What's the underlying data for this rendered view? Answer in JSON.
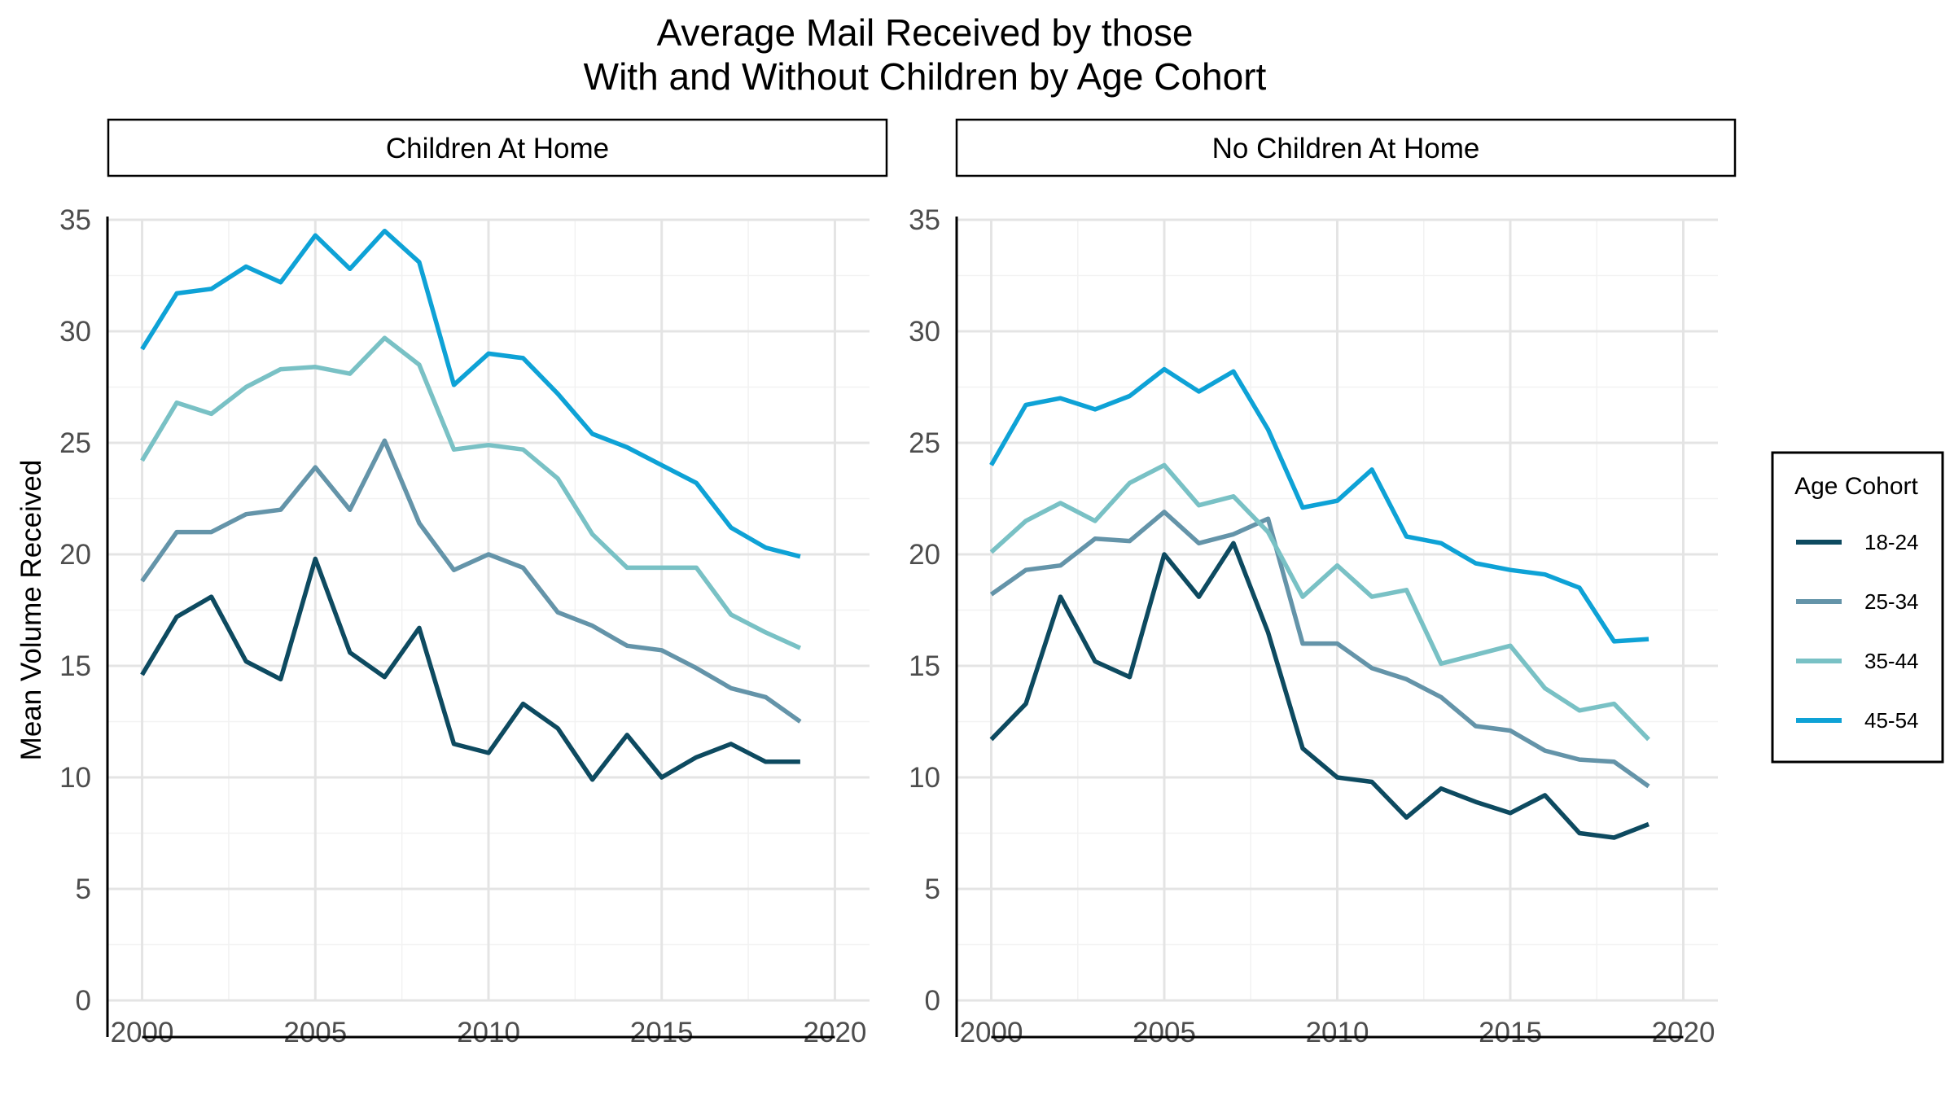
{
  "chart_data": {
    "type": "line",
    "title_lines": [
      "Average Mail Received by those",
      "With and Without Children by Age Cohort"
    ],
    "xlabel": "",
    "ylabel": "Mean Volume Received",
    "xlim": [
      2000,
      2020
    ],
    "ylim": [
      0,
      35
    ],
    "x_ticks": [
      "2000",
      "2005",
      "2010",
      "2015",
      "2020"
    ],
    "y_ticks": [
      "0",
      "5",
      "10",
      "15",
      "20",
      "25",
      "30",
      "35"
    ],
    "grid": true,
    "legend": {
      "title": "Age Cohort",
      "position": "right"
    },
    "colors": {
      "18-24": "#0d4a60",
      "25-34": "#6494a9",
      "35-44": "#79c1c5",
      "45-54": "#0ea2d6"
    },
    "x": [
      2000,
      2001,
      2002,
      2003,
      2004,
      2005,
      2006,
      2007,
      2008,
      2009,
      2010,
      2011,
      2012,
      2013,
      2014,
      2015,
      2016,
      2017,
      2018,
      2019
    ],
    "panels": [
      {
        "strip": "Children At Home",
        "series": [
          {
            "name": "18-24",
            "values": [
              14.6,
              17.2,
              18.1,
              15.2,
              14.4,
              19.8,
              15.6,
              14.5,
              16.7,
              11.5,
              11.1,
              13.3,
              12.2,
              9.9,
              11.9,
              10.0,
              10.9,
              11.5,
              10.7,
              10.7
            ]
          },
          {
            "name": "25-34",
            "values": [
              18.8,
              21.0,
              21.0,
              21.8,
              22.0,
              23.9,
              22.0,
              25.1,
              21.4,
              19.3,
              20.0,
              19.4,
              17.4,
              16.8,
              15.9,
              15.7,
              14.9,
              14.0,
              13.6,
              12.5
            ]
          },
          {
            "name": "35-44",
            "values": [
              24.2,
              26.8,
              26.3,
              27.5,
              28.3,
              28.4,
              28.1,
              29.7,
              28.5,
              24.7,
              24.9,
              24.7,
              23.4,
              20.9,
              19.4,
              19.4,
              19.4,
              17.3,
              16.5,
              15.8
            ]
          },
          {
            "name": "45-54",
            "values": [
              29.2,
              31.7,
              31.9,
              32.9,
              32.2,
              34.3,
              32.8,
              34.5,
              33.1,
              27.6,
              29.0,
              28.8,
              27.2,
              25.4,
              24.8,
              24.0,
              23.2,
              21.2,
              20.3,
              19.9
            ]
          }
        ]
      },
      {
        "strip": "No Children At Home",
        "series": [
          {
            "name": "18-24",
            "values": [
              11.7,
              13.3,
              18.1,
              15.2,
              14.5,
              20.0,
              18.1,
              20.5,
              16.5,
              11.3,
              10.0,
              9.8,
              8.2,
              9.5,
              8.9,
              8.4,
              9.2,
              7.5,
              7.3,
              7.9
            ]
          },
          {
            "name": "25-34",
            "values": [
              18.2,
              19.3,
              19.5,
              20.7,
              20.6,
              21.9,
              20.5,
              20.9,
              21.6,
              16.0,
              16.0,
              14.9,
              14.4,
              13.6,
              12.3,
              12.1,
              11.2,
              10.8,
              10.7,
              9.6
            ]
          },
          {
            "name": "35-44",
            "values": [
              20.1,
              21.5,
              22.3,
              21.5,
              23.2,
              24.0,
              22.2,
              22.6,
              21.0,
              18.1,
              19.5,
              18.1,
              18.4,
              15.1,
              15.5,
              15.9,
              14.0,
              13.0,
              13.3,
              11.7
            ]
          },
          {
            "name": "45-54",
            "values": [
              24.0,
              26.7,
              27.0,
              26.5,
              27.1,
              28.3,
              27.3,
              28.2,
              25.6,
              22.1,
              22.4,
              23.8,
              20.8,
              20.5,
              19.6,
              19.3,
              19.1,
              18.5,
              16.1,
              16.2
            ]
          }
        ]
      }
    ]
  }
}
